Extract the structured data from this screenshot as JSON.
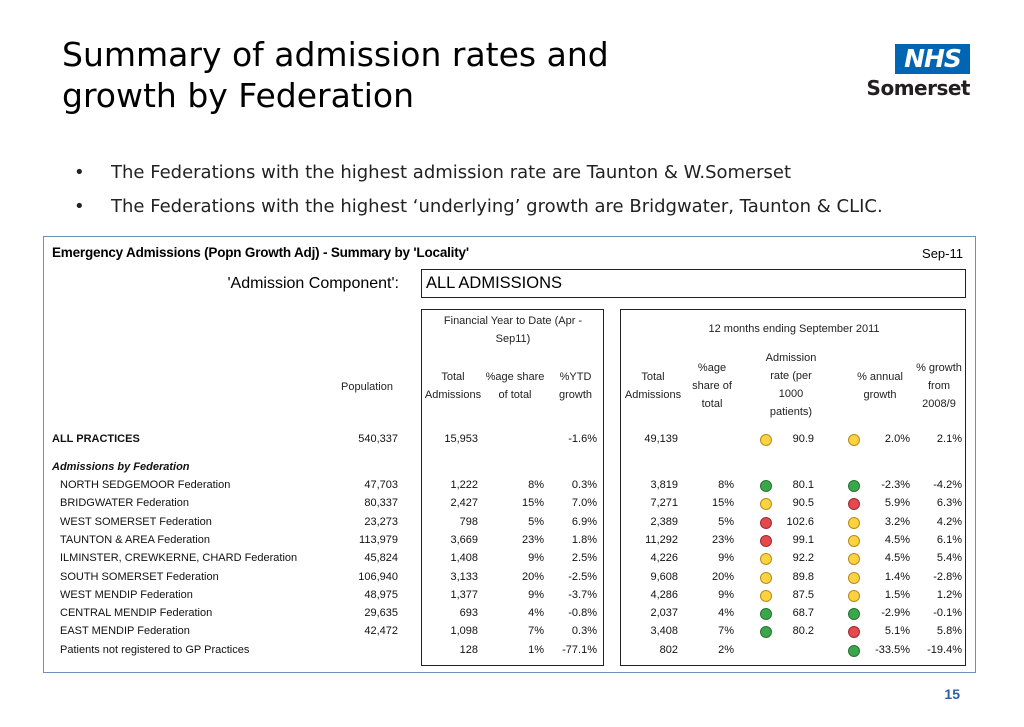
{
  "slide": {
    "title_lines": [
      "Summary of admission rates and",
      "growth by Federation"
    ],
    "logo_top": "NHS",
    "logo_bottom": "Somerset",
    "bullets": [
      "The Federations with the highest admission rate are Taunton & W.Somerset",
      "The Federations with the highest ‘underlying’ growth are Bridgwater, Taunton & CLIC."
    ],
    "bullet_glyph": "•",
    "page_number": "15"
  },
  "sheet": {
    "title": "Emergency Admissions (Popn Growth Adj) - Summary by 'Locality'",
    "date": "Sep-11",
    "component_label": "'Admission Component':",
    "component_value": "ALL ADMISSIONS",
    "ytd_header": [
      "Financial Year to Date (Apr -",
      "Sep11)"
    ],
    "twelve_header": "12 months ending September 2011",
    "columns": {
      "population": [
        "Population"
      ],
      "ytd_total": [
        "Total",
        "Admissions"
      ],
      "ytd_share": [
        "%age share",
        "of total"
      ],
      "ytd_growth": [
        "%YTD",
        "growth"
      ],
      "m12_total": [
        "Total",
        "Admissions"
      ],
      "m12_share": [
        "%age",
        "share of",
        "total"
      ],
      "rate": [
        "Admission",
        "rate (per",
        "1000",
        "patients)"
      ],
      "annual": [
        "% annual",
        "growth"
      ],
      "growth08": [
        "% growth",
        "from",
        "2008/9"
      ]
    },
    "all_practices": {
      "name": "ALL PRACTICES",
      "population": "540,337",
      "ytd_total": "15,953",
      "ytd_share": "",
      "ytd_growth": "-1.6%",
      "m12_total": "49,139",
      "m12_share": "",
      "rate_light": "amber",
      "rate": "90.9",
      "annual_light": "amber",
      "annual": "2.0%",
      "growth08": "2.1%"
    },
    "section_label": "Admissions by Federation",
    "rows": [
      {
        "name": "NORTH SEDGEMOOR Federation",
        "population": "47,703",
        "ytd_total": "1,222",
        "ytd_share": "8%",
        "ytd_growth": "0.3%",
        "m12_total": "3,819",
        "m12_share": "8%",
        "rate_light": "green",
        "rate": "80.1",
        "annual_light": "green",
        "annual": "-2.3%",
        "growth08": "-4.2%"
      },
      {
        "name": "BRIDGWATER Federation",
        "population": "80,337",
        "ytd_total": "2,427",
        "ytd_share": "15%",
        "ytd_growth": "7.0%",
        "m12_total": "7,271",
        "m12_share": "15%",
        "rate_light": "amber",
        "rate": "90.5",
        "annual_light": "red",
        "annual": "5.9%",
        "growth08": "6.3%"
      },
      {
        "name": "WEST SOMERSET Federation",
        "population": "23,273",
        "ytd_total": "798",
        "ytd_share": "5%",
        "ytd_growth": "6.9%",
        "m12_total": "2,389",
        "m12_share": "5%",
        "rate_light": "red",
        "rate": "102.6",
        "annual_light": "amber",
        "annual": "3.2%",
        "growth08": "4.2%"
      },
      {
        "name": "TAUNTON & AREA Federation",
        "population": "113,979",
        "ytd_total": "3,669",
        "ytd_share": "23%",
        "ytd_growth": "1.8%",
        "m12_total": "11,292",
        "m12_share": "23%",
        "rate_light": "red",
        "rate": "99.1",
        "annual_light": "amber",
        "annual": "4.5%",
        "growth08": "6.1%"
      },
      {
        "name": "ILMINSTER, CREWKERNE, CHARD Federation",
        "population": "45,824",
        "ytd_total": "1,408",
        "ytd_share": "9%",
        "ytd_growth": "2.5%",
        "m12_total": "4,226",
        "m12_share": "9%",
        "rate_light": "amber",
        "rate": "92.2",
        "annual_light": "amber",
        "annual": "4.5%",
        "growth08": "5.4%"
      },
      {
        "name": "SOUTH SOMERSET Federation",
        "population": "106,940",
        "ytd_total": "3,133",
        "ytd_share": "20%",
        "ytd_growth": "-2.5%",
        "m12_total": "9,608",
        "m12_share": "20%",
        "rate_light": "amber",
        "rate": "89.8",
        "annual_light": "amber",
        "annual": "1.4%",
        "growth08": "-2.8%"
      },
      {
        "name": "WEST MENDIP Federation",
        "population": "48,975",
        "ytd_total": "1,377",
        "ytd_share": "9%",
        "ytd_growth": "-3.7%",
        "m12_total": "4,286",
        "m12_share": "9%",
        "rate_light": "amber",
        "rate": "87.5",
        "annual_light": "amber",
        "annual": "1.5%",
        "growth08": "1.2%"
      },
      {
        "name": "CENTRAL MENDIP Federation",
        "population": "29,635",
        "ytd_total": "693",
        "ytd_share": "4%",
        "ytd_growth": "-0.8%",
        "m12_total": "2,037",
        "m12_share": "4%",
        "rate_light": "green",
        "rate": "68.7",
        "annual_light": "green",
        "annual": "-2.9%",
        "growth08": "-0.1%"
      },
      {
        "name": "EAST MENDIP Federation",
        "population": "42,472",
        "ytd_total": "1,098",
        "ytd_share": "7%",
        "ytd_growth": "0.3%",
        "m12_total": "3,408",
        "m12_share": "7%",
        "rate_light": "green",
        "rate": "80.2",
        "annual_light": "red",
        "annual": "5.1%",
        "growth08": "5.8%"
      },
      {
        "name": "Patients not registered to GP Practices",
        "population": "",
        "ytd_total": "128",
        "ytd_share": "1%",
        "ytd_growth": "-77.1%",
        "m12_total": "802",
        "m12_share": "2%",
        "rate_light": "",
        "rate": "",
        "annual_light": "green",
        "annual": "-33.5%",
        "growth08": "-19.4%"
      }
    ]
  },
  "colors": {
    "nhs_blue": "#0066b3",
    "sheet_border": "#6f8fb8",
    "amber": "#ffd23f",
    "green": "#3aa84a",
    "red": "#e5484d",
    "page_number": "#2a5ea8"
  }
}
